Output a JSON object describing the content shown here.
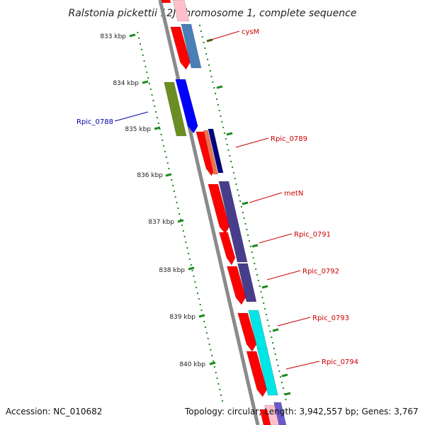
{
  "title": "Ralstonia pickettii 12J chromosome 1, complete sequence",
  "footer": {
    "accession": "Accession: NC_010682",
    "topology": "Topology: circular; Length: 3,942,557 bp; Genes: 3,767"
  },
  "ruler": {
    "unit": "kbp",
    "ticks": [
      "833 kbp",
      "834 kbp",
      "835 kbp",
      "836 kbp",
      "837 kbp",
      "838 kbp",
      "839 kbp",
      "840 kbp"
    ]
  },
  "genes": [
    {
      "label": "cysM",
      "color": "#cc0000"
    },
    {
      "label": "Rpic_0788",
      "color": "#0000aa"
    },
    {
      "label": "Rpic_0789",
      "color": "#cc0000"
    },
    {
      "label": "metN",
      "color": "#cc0000"
    },
    {
      "label": "Rpic_0791",
      "color": "#cc0000"
    },
    {
      "label": "Rpic_0792",
      "color": "#cc0000"
    },
    {
      "label": "Rpic_0793",
      "color": "#cc0000"
    },
    {
      "label": "Rpic_0794",
      "color": "#cc0000"
    }
  ],
  "colors": {
    "backbone": "#8a8a8a",
    "gc_dots": "#1e8a1e",
    "cds": "#ff0000",
    "steel_blue": "#4a7fb8",
    "olive": "#6b8e23",
    "blue": "#0000ff",
    "salmon": "#f07050",
    "navy": "#000080",
    "purple": "#483d8b",
    "cyan": "#00e5e5",
    "pink": "#ffc0cb"
  }
}
